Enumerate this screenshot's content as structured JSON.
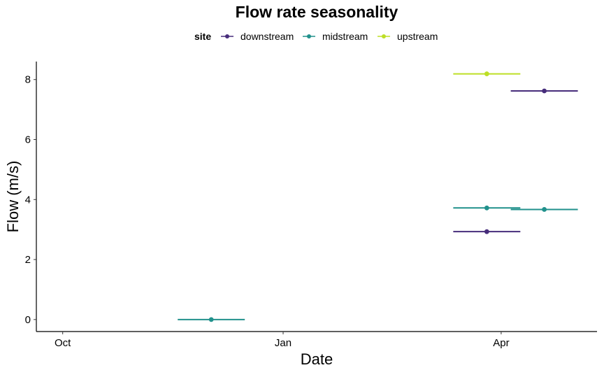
{
  "chart_data": {
    "type": "scatter",
    "title": "Flow rate seasonality",
    "xlabel": "Date",
    "ylabel": "Flow (m/s)",
    "legend": {
      "title": "site",
      "position": "top",
      "entries": [
        {
          "name": "downstream",
          "color": "#472d7b"
        },
        {
          "name": "midstream",
          "color": "#21918c"
        },
        {
          "name": "upstream",
          "color": "#bddf26"
        }
      ]
    },
    "x_ticks": [
      {
        "label": "Oct",
        "value": "2019-10-01"
      },
      {
        "label": "Jan",
        "value": "2020-01-01"
      },
      {
        "label": "Apr",
        "value": "2020-04-01"
      }
    ],
    "y_ticks": [
      0,
      2,
      4,
      6,
      8
    ],
    "xlim": [
      "2019-09-20",
      "2020-05-11"
    ],
    "ylim": [
      -0.4,
      8.6
    ],
    "grid": false,
    "series": [
      {
        "name": "downstream",
        "color": "#472d7b",
        "points": [
          {
            "x": "2020-03-26",
            "y": 2.93,
            "x_from": "2020-03-12",
            "x_to": "2020-04-09"
          },
          {
            "x": "2020-04-19",
            "y": 7.62,
            "x_from": "2020-04-05",
            "x_to": "2020-05-03"
          }
        ]
      },
      {
        "name": "midstream",
        "color": "#21918c",
        "points": [
          {
            "x": "2019-12-02",
            "y": 0.0,
            "x_from": "2019-11-18",
            "x_to": "2019-12-16"
          },
          {
            "x": "2020-03-26",
            "y": 3.72,
            "x_from": "2020-03-12",
            "x_to": "2020-04-09"
          },
          {
            "x": "2020-04-19",
            "y": 3.67,
            "x_from": "2020-04-05",
            "x_to": "2020-05-03"
          }
        ]
      },
      {
        "name": "upstream",
        "color": "#bddf26",
        "points": [
          {
            "x": "2020-03-26",
            "y": 8.19,
            "x_from": "2020-03-12",
            "x_to": "2020-04-09"
          }
        ]
      }
    ]
  }
}
